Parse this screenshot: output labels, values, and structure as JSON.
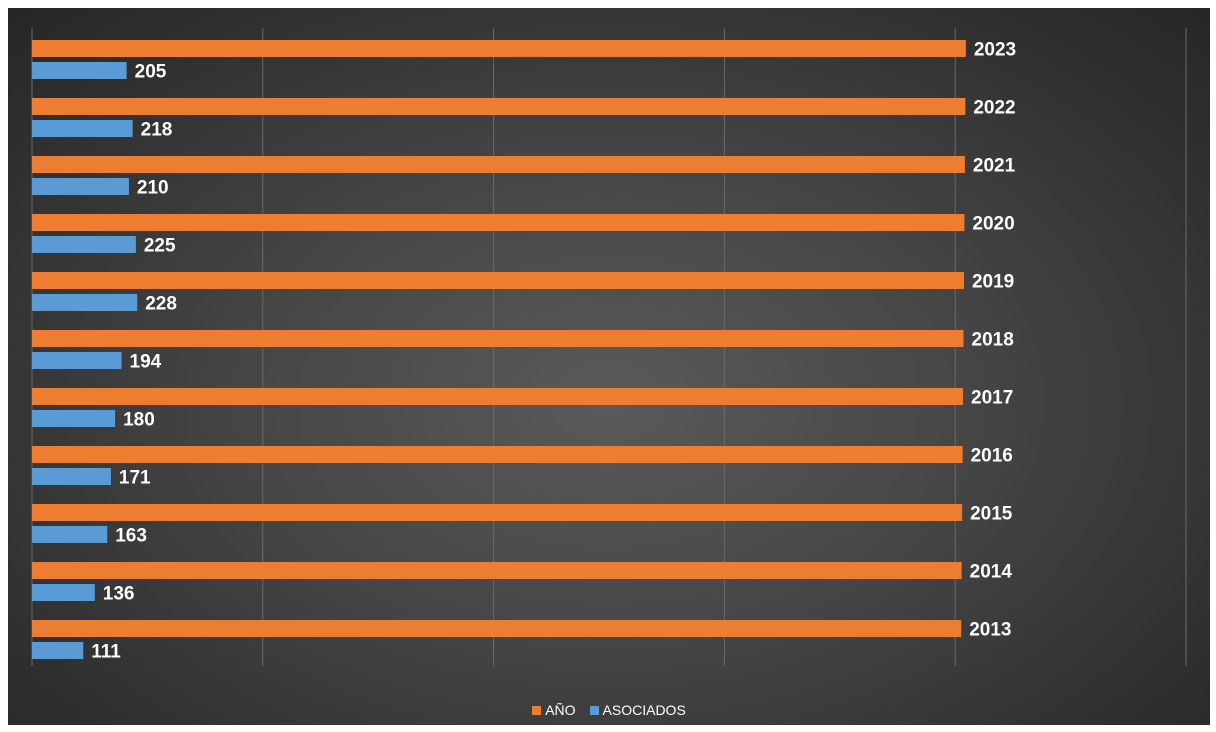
{
  "chart_data": {
    "type": "bar",
    "orientation": "horizontal",
    "categories": [
      "2023",
      "2022",
      "2021",
      "2020",
      "2019",
      "2018",
      "2017",
      "2016",
      "2015",
      "2014",
      "2013"
    ],
    "series": [
      {
        "name": "AÑO",
        "color": "#ED7D31",
        "values": [
          2023,
          2022,
          2021,
          2020,
          2019,
          2018,
          2017,
          2016,
          2015,
          2014,
          2013
        ],
        "labels": [
          "2023",
          "2022",
          "2021",
          "2020",
          "2019",
          "2018",
          "2017",
          "2016",
          "2015",
          "2014",
          "2013"
        ]
      },
      {
        "name": "ASOCIADOS",
        "color": "#5B9BD5",
        "values": [
          205,
          218,
          210,
          225,
          228,
          194,
          180,
          171,
          163,
          136,
          111
        ],
        "labels": [
          "205",
          "218",
          "210",
          "225",
          "228",
          "194",
          "180",
          "171",
          "163",
          "136",
          "111"
        ]
      }
    ],
    "xlim": [
      0,
      2500
    ],
    "grid": true,
    "legend_position": "bottom"
  }
}
